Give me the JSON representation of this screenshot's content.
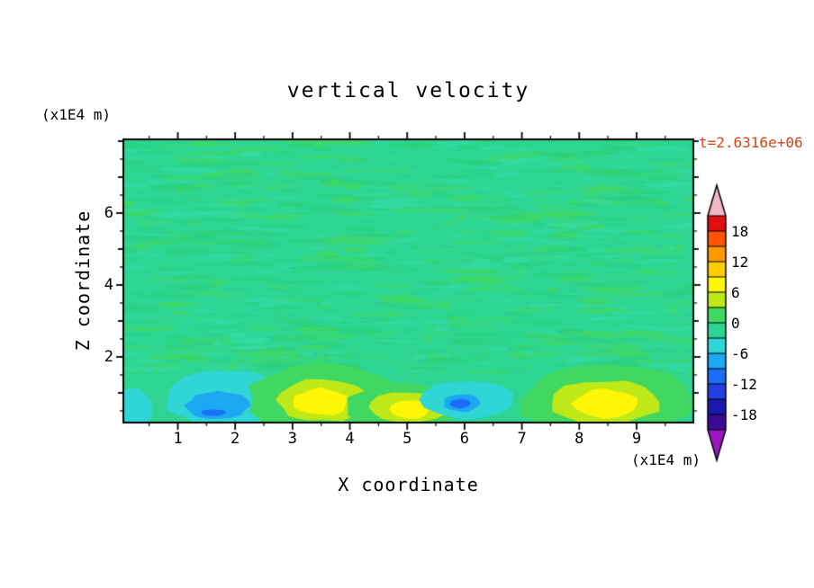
{
  "title": "vertical velocity",
  "time_label": "t=2.6316e+06",
  "colors": {
    "time_label": "#d8431a",
    "axis": "#000000",
    "background": "#ffffff"
  },
  "axes": {
    "x_label": "X coordinate",
    "x_unit": "(x1E4 m)",
    "y_label": "Z coordinate",
    "y_unit": "(x1E4 m)",
    "x_domain": [
      0.05,
      9.99
    ],
    "z_domain": [
      0.175,
      8.05
    ],
    "x_major_ticks": [
      1,
      2,
      3,
      4,
      5,
      6,
      7,
      8,
      9
    ],
    "x_minor_step": 0.5,
    "y_labeled_ticks": [
      2,
      4,
      6
    ],
    "y_minor_step": 0.5
  },
  "colorbar": {
    "tick_labels": [
      "18",
      "12",
      "6",
      "0",
      "-6",
      "-12",
      "-18"
    ],
    "value_range": [
      -21,
      21
    ],
    "band_size": 3,
    "over_arrow_color": "#f2b6c6",
    "under_arrow_color": "#9a16c0",
    "bands_top_to_bottom": [
      {
        "range": [
          18,
          21
        ],
        "color": "#e01010"
      },
      {
        "range": [
          15,
          18
        ],
        "color": "#ff5500"
      },
      {
        "range": [
          12,
          15
        ],
        "color": "#ff9900"
      },
      {
        "range": [
          9,
          12
        ],
        "color": "#ffcc00"
      },
      {
        "range": [
          6,
          9
        ],
        "color": "#fdf605"
      },
      {
        "range": [
          3,
          6
        ],
        "color": "#bfe818"
      },
      {
        "range": [
          0,
          3
        ],
        "color": "#40d860"
      },
      {
        "range": [
          -3,
          0
        ],
        "color": "#2ed592"
      },
      {
        "range": [
          -6,
          -3
        ],
        "color": "#30d6d6"
      },
      {
        "range": [
          -9,
          -6
        ],
        "color": "#1ca8f2"
      },
      {
        "range": [
          -12,
          -9
        ],
        "color": "#1b6ef8"
      },
      {
        "range": [
          -15,
          -12
        ],
        "color": "#2240e0"
      },
      {
        "range": [
          -18,
          -15
        ],
        "color": "#1a1aae"
      },
      {
        "range": [
          -21,
          -18
        ],
        "color": "#3b0b96"
      }
    ]
  },
  "chart_data": {
    "type": "heatmap",
    "subtype": "filled-contour",
    "title": "vertical velocity",
    "xlabel": "X coordinate (x1E4 m)",
    "ylabel": "Z coordinate (x1E4 m)",
    "time_annotation": "t=2.6316e+06",
    "x_range": [
      0.05,
      9.99
    ],
    "z_range": [
      0.175,
      8.05
    ],
    "contour_levels": [
      -21,
      -18,
      -15,
      -12,
      -9,
      -6,
      -3,
      0,
      3,
      6,
      9,
      12,
      15,
      18,
      21
    ],
    "colorbar_tick_values": [
      18,
      12,
      6,
      0,
      -6,
      -12,
      -18
    ],
    "field_summary": "Vertical velocity is mostly between -3 and +3 (mottled green turbulence) through the domain interior; near the bottom boundary there are updraft cores reaching the 6-9 band at x=3.5, 5.0 and 8.5, and downdraft cores reaching the -9 to -12 band at x=1.6 and x=5.9.",
    "features": [
      {
        "name": "downdraft-left-outer",
        "cx": 1.85,
        "cz": 0.85,
        "rx": 1.1,
        "rz": 0.8,
        "value": -4.5
      },
      {
        "name": "downdraft-left-mid",
        "cx": 1.7,
        "cz": 0.65,
        "rx": 0.55,
        "rz": 0.4,
        "value": -7.5
      },
      {
        "name": "downdraft-left-core",
        "cx": 1.62,
        "cz": 0.45,
        "rx": 0.22,
        "rz": 0.09,
        "value": -10.5
      },
      {
        "name": "corner-negative",
        "cx": 0.12,
        "cz": 0.55,
        "rx": 0.45,
        "rz": 0.6,
        "value": -4.5
      },
      {
        "name": "updraft-a-outer",
        "cx": 3.55,
        "cz": 0.85,
        "rx": 1.35,
        "rz": 0.95,
        "value": 1.5
      },
      {
        "name": "updraft-a-mid",
        "cx": 3.55,
        "cz": 0.8,
        "rx": 0.82,
        "rz": 0.6,
        "value": 4.5
      },
      {
        "name": "updraft-a-core",
        "cx": 3.5,
        "cz": 0.75,
        "rx": 0.48,
        "rz": 0.38,
        "value": 7.5
      },
      {
        "name": "updraft-b-outer",
        "cx": 5.0,
        "cz": 0.62,
        "rx": 1.05,
        "rz": 0.62,
        "value": 1.5
      },
      {
        "name": "updraft-b-mid",
        "cx": 5.0,
        "cz": 0.58,
        "rx": 0.66,
        "rz": 0.44,
        "value": 4.5
      },
      {
        "name": "updraft-b-core",
        "cx": 5.05,
        "cz": 0.55,
        "rx": 0.36,
        "rz": 0.26,
        "value": 7.5
      },
      {
        "name": "downdraft-mid-outer",
        "cx": 6.05,
        "cz": 0.8,
        "rx": 0.8,
        "rz": 0.55,
        "value": -4.5
      },
      {
        "name": "downdraft-mid-mid",
        "cx": 5.95,
        "cz": 0.72,
        "rx": 0.32,
        "rz": 0.24,
        "value": -7.5
      },
      {
        "name": "downdraft-mid-core",
        "cx": 5.93,
        "cz": 0.7,
        "rx": 0.18,
        "rz": 0.13,
        "value": -10.5
      },
      {
        "name": "updraft-c-outer",
        "cx": 8.45,
        "cz": 0.78,
        "rx": 1.5,
        "rz": 1.0,
        "value": 1.5
      },
      {
        "name": "updraft-c-mid",
        "cx": 8.45,
        "cz": 0.73,
        "rx": 0.95,
        "rz": 0.62,
        "value": 4.5
      },
      {
        "name": "updraft-c-core",
        "cx": 8.45,
        "cz": 0.7,
        "rx": 0.55,
        "rz": 0.4,
        "value": 7.5
      }
    ],
    "texture": {
      "seed": 20240611,
      "base_color": "#2ed592",
      "streak_colors": [
        "#40d860",
        "#35dba6",
        "#2bd07e"
      ],
      "streak_count": 850,
      "speckle_count": 260
    }
  }
}
